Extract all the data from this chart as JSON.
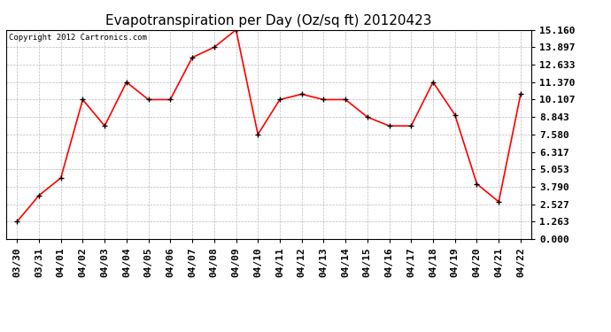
{
  "title": "Evapotranspiration per Day (Oz/sq ft) 20120423",
  "copyright_text": "Copyright 2012 Cartronics.com",
  "line_color": "#ff0000",
  "background_color": "#ffffff",
  "plot_bg_color": "#ffffff",
  "grid_color": "#bbbbbb",
  "dates": [
    "03/30",
    "03/31",
    "04/01",
    "04/02",
    "04/03",
    "04/04",
    "04/05",
    "04/06",
    "04/07",
    "04/08",
    "04/09",
    "04/10",
    "04/11",
    "04/12",
    "04/13",
    "04/14",
    "04/15",
    "04/16",
    "04/17",
    "04/18",
    "04/19",
    "04/20",
    "04/21",
    "04/22"
  ],
  "values": [
    1.263,
    3.16,
    4.43,
    10.107,
    8.2,
    11.37,
    10.107,
    10.107,
    13.16,
    13.897,
    15.16,
    7.58,
    10.107,
    10.5,
    10.107,
    10.107,
    8.843,
    8.2,
    8.2,
    11.37,
    9.0,
    4.0,
    2.7,
    10.5
  ],
  "yticks": [
    0.0,
    1.263,
    2.527,
    3.79,
    5.053,
    6.317,
    7.58,
    8.843,
    10.107,
    11.37,
    12.633,
    13.897,
    15.16
  ],
  "ymin": 0.0,
  "ymax": 15.16,
  "title_fontsize": 11,
  "tick_fontsize": 8,
  "copyright_fontsize": 6.5,
  "marker_size": 4,
  "linewidth": 1.2,
  "fig_width": 6.9,
  "fig_height": 3.75,
  "dpi": 100
}
